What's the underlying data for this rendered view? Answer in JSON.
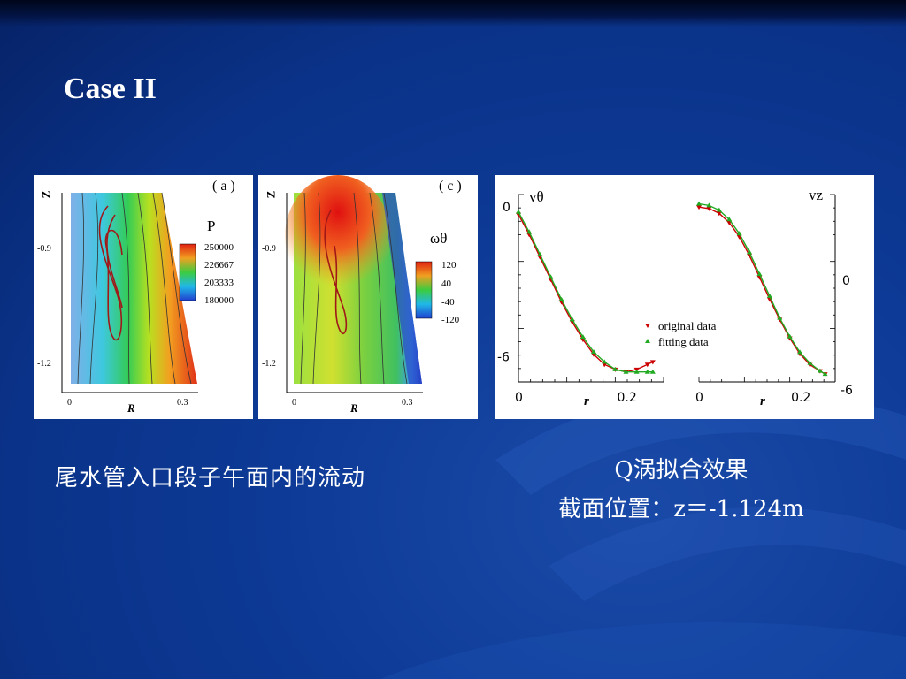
{
  "slide": {
    "title": "Case II",
    "caption_left": "尾水管入口段子午面内的流动",
    "caption_right_line1": "Q涡拟合效果",
    "caption_right_line2": "截面位置：z＝-1.124m"
  },
  "panel_a": {
    "tag": "( a )",
    "z_label": "Z",
    "r_label": "R",
    "z_ticks": [
      "-0.9",
      "-1.2"
    ],
    "r_ticks": [
      "0",
      "0.3"
    ],
    "legend_title": "P",
    "legend_values": [
      "250000",
      "226667",
      "203333",
      "180000"
    ]
  },
  "panel_c": {
    "tag": "( c )",
    "z_label": "Z",
    "r_label": "R",
    "z_ticks": [
      "-0.9",
      "-1.2"
    ],
    "r_ticks": [
      "0",
      "0.3"
    ],
    "legend_title": "ωθ",
    "legend_values": [
      "120",
      "40",
      "-40",
      "-120"
    ]
  },
  "chart_data": [
    {
      "type": "line",
      "title": "vθ",
      "xlabel": "r",
      "x_ticks": [
        "0",
        "0.2"
      ],
      "y_ticks": [
        "0",
        "-6"
      ],
      "xlim": [
        0,
        0.27
      ],
      "ylim": [
        -7,
        0.5
      ],
      "series": [
        {
          "name": "original data",
          "color": "#cc0000",
          "marker": "triangle-down",
          "x": [
            0.0,
            0.02,
            0.04,
            0.06,
            0.08,
            0.1,
            0.12,
            0.14,
            0.16,
            0.18,
            0.2,
            0.22,
            0.24,
            0.25
          ],
          "y": [
            -0.3,
            -1.1,
            -2.0,
            -2.9,
            -3.8,
            -4.6,
            -5.3,
            -5.9,
            -6.3,
            -6.5,
            -6.6,
            -6.5,
            -6.3,
            -6.2
          ]
        },
        {
          "name": "fitting data",
          "color": "#22aa22",
          "marker": "triangle-up",
          "x": [
            0.0,
            0.02,
            0.04,
            0.06,
            0.08,
            0.1,
            0.12,
            0.14,
            0.16,
            0.18,
            0.2,
            0.22,
            0.24,
            0.25
          ],
          "y": [
            -0.2,
            -1.0,
            -1.9,
            -2.8,
            -3.7,
            -4.5,
            -5.2,
            -5.8,
            -6.2,
            -6.5,
            -6.6,
            -6.6,
            -6.6,
            -6.6
          ]
        }
      ]
    },
    {
      "type": "line",
      "title": "vz",
      "xlabel": "r",
      "x_ticks": [
        "0",
        "0.2"
      ],
      "y_ticks": [
        "0",
        "-6"
      ],
      "xlim": [
        0,
        0.27
      ],
      "ylim": [
        -6.5,
        5.5
      ],
      "series": [
        {
          "name": "original data",
          "color": "#cc0000",
          "marker": "triangle-down",
          "x": [
            0.0,
            0.02,
            0.04,
            0.06,
            0.08,
            0.1,
            0.12,
            0.14,
            0.16,
            0.18,
            0.2,
            0.22,
            0.24,
            0.25
          ],
          "y": [
            4.7,
            4.6,
            4.3,
            3.7,
            2.8,
            1.6,
            0.2,
            -1.2,
            -2.5,
            -3.7,
            -4.7,
            -5.4,
            -5.8,
            -6.0
          ]
        },
        {
          "name": "fitting data",
          "color": "#22aa22",
          "marker": "triangle-up",
          "x": [
            0.0,
            0.02,
            0.04,
            0.06,
            0.08,
            0.1,
            0.12,
            0.14,
            0.16,
            0.18,
            0.2,
            0.22,
            0.24,
            0.25
          ],
          "y": [
            4.9,
            4.8,
            4.5,
            3.9,
            3.0,
            1.8,
            0.4,
            -1.0,
            -2.4,
            -3.6,
            -4.6,
            -5.3,
            -5.8,
            -6.0
          ]
        }
      ]
    }
  ]
}
